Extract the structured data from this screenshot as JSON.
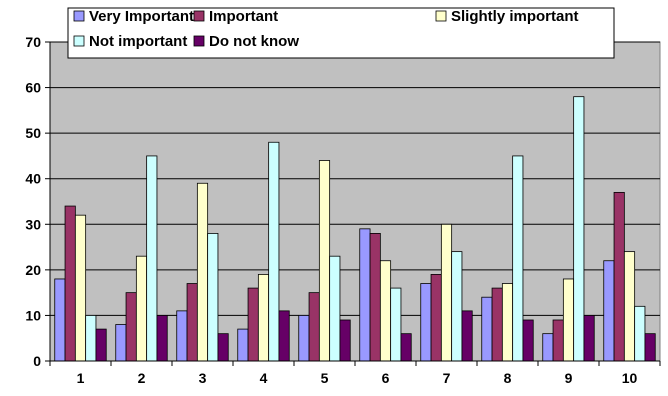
{
  "chart_data": {
    "type": "bar",
    "title": "",
    "xlabel": "",
    "ylabel": "",
    "categories": [
      "1",
      "2",
      "3",
      "4",
      "5",
      "6",
      "7",
      "8",
      "9",
      "10"
    ],
    "ylim": [
      0,
      70
    ],
    "yticks": [
      "0",
      "10",
      "20",
      "30",
      "40",
      "50",
      "60",
      "70"
    ],
    "grid": true,
    "legend_position": "top",
    "plot_background": "#c0c0c0",
    "series": [
      {
        "name": "Very Important",
        "color": "#9999ff",
        "values": [
          18,
          8,
          11,
          7,
          10,
          29,
          17,
          14,
          6,
          22
        ]
      },
      {
        "name": "Important",
        "color": "#993366",
        "values": [
          34,
          15,
          17,
          16,
          15,
          28,
          19,
          16,
          9,
          37
        ]
      },
      {
        "name": "Slightly important",
        "color": "#ffffcc",
        "values": [
          32,
          23,
          39,
          19,
          44,
          22,
          30,
          17,
          18,
          24
        ]
      },
      {
        "name": "Not important",
        "color": "#ccffff",
        "values": [
          10,
          45,
          28,
          48,
          23,
          16,
          24,
          45,
          58,
          12
        ]
      },
      {
        "name": "Do not know",
        "color": "#660066",
        "values": [
          7,
          10,
          6,
          11,
          9,
          6,
          11,
          9,
          10,
          6
        ]
      }
    ]
  }
}
